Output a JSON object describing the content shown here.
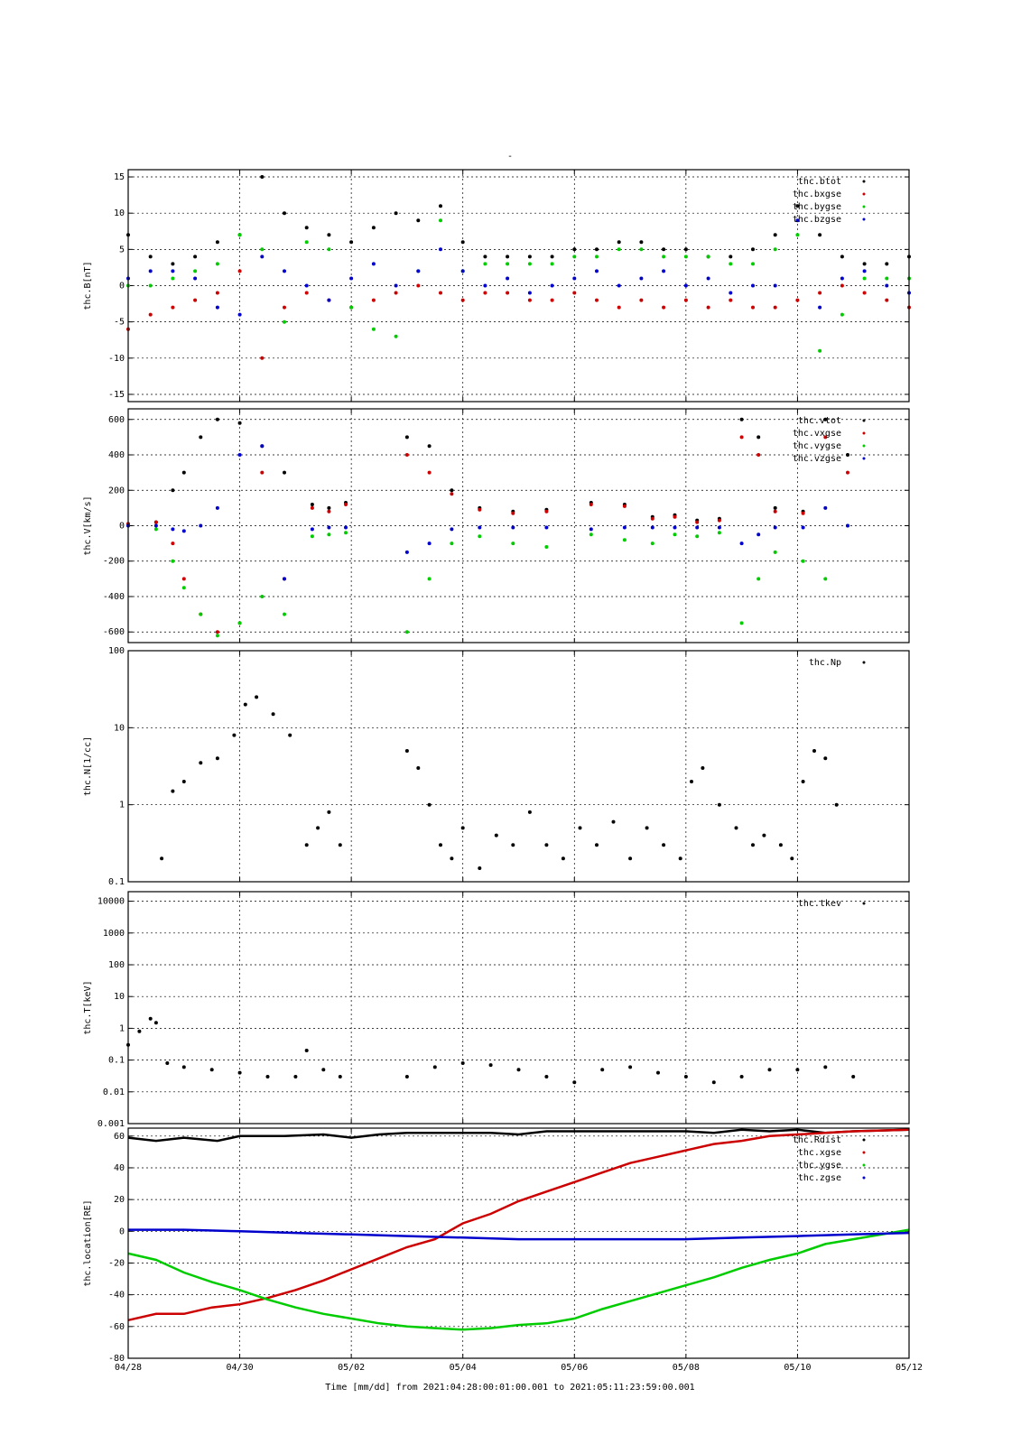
{
  "page": {
    "title": "-",
    "footer": "Time [mm/dd]  from 2021:04:28:00:01:00.001  to  2021:05:11:23:59:00.001"
  },
  "colors": {
    "black": "#000000",
    "red": "#cc0000",
    "green": "#00cc00",
    "blue": "#0000cc"
  },
  "chart_data": [
    {
      "type": "scatter",
      "ylabel": "thc.B[nT]",
      "scale": "linear",
      "ylim": [
        -16,
        16
      ],
      "yticks": [
        15,
        10,
        5,
        0,
        -5,
        -10,
        -15
      ],
      "xlim": [
        0,
        14
      ],
      "x_tick_labels": [
        "04/28",
        "04/30",
        "05/02",
        "05/04",
        "05/06",
        "05/08",
        "05/10",
        "05/12"
      ],
      "grid": true,
      "legend": "top-right",
      "series": [
        {
          "name": "thc.btot",
          "color": "#000000",
          "x": [
            0,
            0.4,
            0.8,
            1.2,
            1.6,
            2.0,
            2.4,
            2.8,
            3.2,
            3.6,
            4.0,
            4.4,
            4.8,
            5.2,
            5.6,
            6.0,
            6.4,
            6.8,
            7.2,
            7.6,
            8.0,
            8.4,
            8.8,
            9.2,
            9.6,
            10.0,
            10.4,
            10.8,
            11.2,
            11.6,
            12.0,
            12.4,
            12.8,
            13.2,
            13.6,
            14.0
          ],
          "values": [
            7,
            4,
            3,
            4,
            6,
            7,
            15,
            10,
            8,
            7,
            6,
            8,
            10,
            9,
            11,
            6,
            4,
            4,
            4,
            4,
            5,
            5,
            6,
            6,
            5,
            5,
            4,
            4,
            5,
            7,
            11,
            7,
            4,
            3,
            3,
            4
          ]
        },
        {
          "name": "thc.bxgse",
          "color": "#cc0000",
          "x": [
            0,
            0.4,
            0.8,
            1.2,
            1.6,
            2.0,
            2.4,
            2.8,
            3.2,
            3.6,
            4.0,
            4.4,
            4.8,
            5.2,
            5.6,
            6.0,
            6.4,
            6.8,
            7.2,
            7.6,
            8.0,
            8.4,
            8.8,
            9.2,
            9.6,
            10.0,
            10.4,
            10.8,
            11.2,
            11.6,
            12.0,
            12.4,
            12.8,
            13.2,
            13.6,
            14.0
          ],
          "values": [
            -6,
            -4,
            -3,
            -2,
            -1,
            2,
            -10,
            -3,
            -1,
            -2,
            -3,
            -2,
            -1,
            0,
            -1,
            -2,
            -1,
            -1,
            -2,
            -2,
            -1,
            -2,
            -3,
            -2,
            -3,
            -2,
            -3,
            -2,
            -3,
            -3,
            -2,
            -1,
            0,
            -1,
            -2,
            -3
          ]
        },
        {
          "name": "thc.bygse",
          "color": "#00cc00",
          "x": [
            0,
            0.4,
            0.8,
            1.2,
            1.6,
            2.0,
            2.4,
            2.8,
            3.2,
            3.6,
            4.0,
            4.4,
            4.8,
            5.2,
            5.6,
            6.0,
            6.4,
            6.8,
            7.2,
            7.6,
            8.0,
            8.4,
            8.8,
            9.2,
            9.6,
            10.0,
            10.4,
            10.8,
            11.2,
            11.6,
            12.0,
            12.4,
            12.8,
            13.2,
            13.6,
            14.0
          ],
          "values": [
            0,
            0,
            1,
            2,
            3,
            7,
            5,
            -5,
            6,
            5,
            -3,
            -6,
            -7,
            2,
            9,
            2,
            3,
            3,
            3,
            3,
            4,
            4,
            5,
            5,
            4,
            4,
            4,
            3,
            3,
            5,
            7,
            -9,
            -4,
            1,
            1,
            1
          ]
        },
        {
          "name": "thc.bzgse",
          "color": "#0000cc",
          "x": [
            0,
            0.4,
            0.8,
            1.2,
            1.6,
            2.0,
            2.4,
            2.8,
            3.2,
            3.6,
            4.0,
            4.4,
            4.8,
            5.2,
            5.6,
            6.0,
            6.4,
            6.8,
            7.2,
            7.6,
            8.0,
            8.4,
            8.8,
            9.2,
            9.6,
            10.0,
            10.4,
            10.8,
            11.2,
            11.6,
            12.0,
            12.4,
            12.8,
            13.2,
            13.6,
            14.0
          ],
          "values": [
            1,
            2,
            2,
            1,
            -3,
            -4,
            4,
            2,
            0,
            -2,
            1,
            3,
            0,
            2,
            5,
            2,
            0,
            1,
            -1,
            0,
            1,
            2,
            0,
            1,
            2,
            0,
            1,
            -1,
            0,
            0,
            9,
            -3,
            1,
            2,
            0,
            -1
          ]
        }
      ]
    },
    {
      "type": "scatter",
      "ylabel": "thc.V[km/s]",
      "scale": "linear",
      "ylim": [
        -660,
        660
      ],
      "yticks": [
        600,
        400,
        200,
        0,
        -200,
        -400,
        -600
      ],
      "xlim": [
        0,
        14
      ],
      "grid": true,
      "legend": "top-right",
      "series": [
        {
          "name": "thc.vtot",
          "color": "#000000",
          "x": [
            0,
            0.5,
            0.8,
            1.0,
            1.3,
            1.6,
            2.0,
            2.4,
            2.8,
            3.3,
            3.6,
            3.9,
            5.0,
            5.4,
            5.8,
            6.3,
            6.9,
            7.5,
            8.3,
            8.9,
            9.4,
            9.8,
            10.2,
            10.6,
            11.0,
            11.3,
            11.6,
            12.1,
            12.5,
            12.9
          ],
          "values": [
            10,
            20,
            200,
            300,
            500,
            600,
            580,
            450,
            300,
            120,
            100,
            130,
            500,
            450,
            200,
            100,
            80,
            90,
            130,
            120,
            50,
            60,
            30,
            40,
            600,
            500,
            100,
            80,
            600,
            400
          ]
        },
        {
          "name": "thc.vxgse",
          "color": "#cc0000",
          "x": [
            0,
            0.5,
            0.8,
            1.0,
            1.3,
            1.6,
            2.0,
            2.4,
            2.8,
            3.3,
            3.6,
            3.9,
            5.0,
            5.4,
            5.8,
            6.3,
            6.9,
            7.5,
            8.3,
            8.9,
            9.4,
            9.8,
            10.2,
            10.6,
            11.0,
            11.3,
            11.6,
            12.1,
            12.5,
            12.9
          ],
          "values": [
            10,
            20,
            -100,
            -300,
            -500,
            -600,
            -550,
            300,
            -300,
            100,
            80,
            120,
            400,
            300,
            180,
            90,
            70,
            80,
            120,
            110,
            40,
            50,
            20,
            30,
            500,
            400,
            80,
            70,
            500,
            300
          ]
        },
        {
          "name": "thc.vygse",
          "color": "#00cc00",
          "x": [
            0,
            0.5,
            0.8,
            1.0,
            1.3,
            1.6,
            2.0,
            2.4,
            2.8,
            3.3,
            3.6,
            3.9,
            5.0,
            5.4,
            5.8,
            6.3,
            6.9,
            7.5,
            8.3,
            8.9,
            9.4,
            9.8,
            10.2,
            10.6,
            11.0,
            11.3,
            11.6,
            12.1,
            12.5,
            12.9
          ],
          "values": [
            0,
            -20,
            -200,
            -350,
            -500,
            -620,
            -550,
            -400,
            -500,
            -60,
            -50,
            -40,
            -600,
            -300,
            -100,
            -60,
            -100,
            -120,
            -50,
            -80,
            -100,
            -50,
            -60,
            -40,
            -550,
            -300,
            -150,
            -200,
            -300,
            0
          ]
        },
        {
          "name": "thc.vzgse",
          "color": "#0000cc",
          "x": [
            0,
            0.5,
            0.8,
            1.0,
            1.3,
            1.6,
            2.0,
            2.4,
            2.8,
            3.3,
            3.6,
            3.9,
            5.0,
            5.4,
            5.8,
            6.3,
            6.9,
            7.5,
            8.3,
            8.9,
            9.4,
            9.8,
            10.2,
            10.6,
            11.0,
            11.3,
            11.6,
            12.1,
            12.5,
            12.9
          ],
          "values": [
            0,
            0,
            -20,
            -30,
            0,
            100,
            400,
            450,
            -300,
            -20,
            -10,
            -10,
            -150,
            -100,
            -20,
            -10,
            -10,
            -10,
            -20,
            -10,
            -10,
            -10,
            -10,
            -10,
            -100,
            -50,
            -10,
            -10,
            100,
            0
          ]
        }
      ]
    },
    {
      "type": "scatter",
      "ylabel": "thc.N[1/cc]",
      "scale": "log",
      "ylim": [
        0.1,
        100
      ],
      "yticks": [
        100,
        10,
        1,
        0.1
      ],
      "xlim": [
        0,
        14
      ],
      "grid": true,
      "legend": "top-right",
      "series": [
        {
          "name": "thc.Np",
          "color": "#000000",
          "x": [
            0.6,
            0.8,
            1.0,
            1.3,
            1.6,
            1.9,
            2.1,
            2.3,
            2.6,
            2.9,
            3.2,
            3.4,
            3.6,
            3.8,
            5.0,
            5.2,
            5.4,
            5.6,
            5.8,
            6.0,
            6.3,
            6.6,
            6.9,
            7.2,
            7.5,
            7.8,
            8.1,
            8.4,
            8.7,
            9.0,
            9.3,
            9.6,
            9.9,
            10.1,
            10.3,
            10.6,
            10.9,
            11.2,
            11.4,
            11.7,
            11.9,
            12.1,
            12.3,
            12.5,
            12.7
          ],
          "values": [
            0.2,
            1.5,
            2,
            3.5,
            4,
            8,
            20,
            25,
            15,
            8,
            0.3,
            0.5,
            0.8,
            0.3,
            5,
            3,
            1,
            0.3,
            0.2,
            0.5,
            0.15,
            0.4,
            0.3,
            0.8,
            0.3,
            0.2,
            0.5,
            0.3,
            0.6,
            0.2,
            0.5,
            0.3,
            0.2,
            2,
            3,
            1,
            0.5,
            0.3,
            0.4,
            0.3,
            0.2,
            2,
            5,
            4,
            1
          ]
        }
      ]
    },
    {
      "type": "scatter",
      "ylabel": "thc.T[keV]",
      "scale": "log",
      "ylim": [
        0.001,
        20000
      ],
      "yticks": [
        10000,
        1000,
        100,
        10,
        1,
        0.1,
        0.01,
        0.001
      ],
      "xlim": [
        0,
        14
      ],
      "grid": true,
      "legend": "top-right",
      "series": [
        {
          "name": "thc.tkev",
          "color": "#000000",
          "x": [
            0.0,
            0.2,
            0.4,
            0.5,
            0.7,
            1.0,
            1.5,
            2.0,
            2.5,
            3.0,
            3.2,
            3.5,
            3.8,
            5.0,
            5.5,
            6.0,
            6.5,
            7.0,
            7.5,
            8.0,
            8.5,
            9.0,
            9.5,
            10.0,
            10.5,
            11.0,
            11.5,
            12.0,
            12.5,
            13.0
          ],
          "values": [
            0.3,
            0.8,
            2,
            1.5,
            0.08,
            0.06,
            0.05,
            0.04,
            0.03,
            0.03,
            0.2,
            0.05,
            0.03,
            0.03,
            0.06,
            0.08,
            0.07,
            0.05,
            0.03,
            0.02,
            0.05,
            0.06,
            0.04,
            0.03,
            0.02,
            0.03,
            0.05,
            0.05,
            0.06,
            0.03
          ]
        }
      ]
    },
    {
      "type": "line",
      "ylabel": "thc.location[RE]",
      "scale": "linear",
      "ylim": [
        -80,
        65
      ],
      "yticks": [
        60,
        40,
        20,
        0,
        -20,
        -40,
        -60,
        -80
      ],
      "xlim": [
        0,
        14
      ],
      "x_tick_labels": [
        "04/28",
        "04/30",
        "05/02",
        "05/04",
        "05/06",
        "05/08",
        "05/10",
        "05/12"
      ],
      "grid": true,
      "legend": "top-right",
      "series": [
        {
          "name": "thc.Rdist",
          "color": "#000000",
          "x": [
            0,
            0.5,
            1.0,
            1.6,
            2.0,
            2.8,
            3.5,
            4.0,
            4.5,
            5.0,
            5.5,
            6.0,
            6.5,
            7.0,
            7.5,
            8.0,
            8.5,
            9.0,
            9.5,
            10.0,
            10.5,
            11.0,
            11.5,
            12.0,
            12.5,
            13.0,
            14.0
          ],
          "values": [
            59,
            57,
            59,
            57,
            60,
            60,
            61,
            59,
            61,
            62,
            62,
            62,
            62,
            61,
            63,
            63,
            63,
            63,
            63,
            63,
            62,
            64,
            63,
            64,
            62,
            63,
            64
          ]
        },
        {
          "name": "thc.xgse",
          "color": "#cc0000",
          "x": [
            0,
            0.5,
            1.0,
            1.5,
            2.0,
            2.5,
            3.0,
            3.5,
            4.0,
            4.5,
            5.0,
            5.5,
            6.0,
            6.5,
            7.0,
            7.5,
            8.0,
            8.5,
            9.0,
            9.5,
            10.0,
            10.5,
            11.0,
            11.5,
            12.0,
            12.5,
            13.0,
            14.0
          ],
          "values": [
            -56,
            -52,
            -52,
            -48,
            -46,
            -42,
            -37,
            -31,
            -24,
            -17,
            -10,
            -5,
            5,
            11,
            19,
            25,
            31,
            37,
            43,
            47,
            51,
            55,
            57,
            60,
            61,
            62,
            63,
            64
          ]
        },
        {
          "name": "thc.ygse",
          "color": "#00cc00",
          "x": [
            0,
            0.5,
            1.0,
            1.5,
            2.0,
            2.5,
            3.0,
            3.5,
            4.0,
            4.5,
            5.0,
            5.5,
            6.0,
            6.5,
            7.0,
            7.5,
            8.0,
            8.5,
            9.0,
            9.5,
            10.0,
            10.5,
            11.0,
            11.5,
            12.0,
            12.5,
            13.0,
            14.0
          ],
          "values": [
            -14,
            -18,
            -26,
            -32,
            -37,
            -43,
            -48,
            -52,
            -55,
            -58,
            -60,
            -61,
            -62,
            -61,
            -59,
            -58,
            -55,
            -49,
            -44,
            -39,
            -34,
            -29,
            -23,
            -18,
            -14,
            -8,
            -5,
            1
          ]
        },
        {
          "name": "thc.zgse",
          "color": "#0000cc",
          "x": [
            0,
            1,
            2,
            3,
            4,
            5,
            6,
            7,
            8,
            9,
            10,
            11,
            12,
            13,
            14
          ],
          "values": [
            1,
            1,
            0,
            -1,
            -2,
            -3,
            -4,
            -5,
            -5,
            -5,
            -5,
            -4,
            -3,
            -2,
            -1
          ]
        }
      ]
    }
  ]
}
